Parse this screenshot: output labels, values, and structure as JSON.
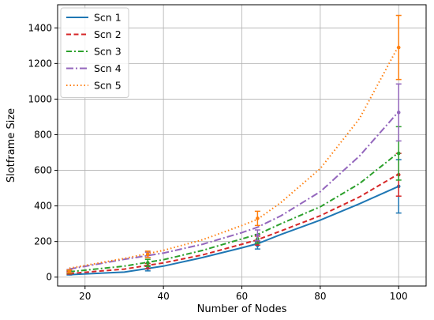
{
  "chart_data": {
    "type": "line",
    "xlabel": "Number of Nodes",
    "ylabel": "Slotframe Size",
    "xlim": [
      13,
      107
    ],
    "ylim": [
      -50,
      1530
    ],
    "xticks": [
      20,
      40,
      60,
      80,
      100
    ],
    "yticks": [
      0,
      200,
      400,
      600,
      800,
      1000,
      1200,
      1400
    ],
    "grid": true,
    "legend_position": "top-left",
    "measured_x": [
      16,
      36,
      64,
      100
    ],
    "series": [
      {
        "name": "Scn 1",
        "color": "#1f77b4",
        "dash": "solid",
        "curve": [
          [
            16,
            14
          ],
          [
            30,
            28
          ],
          [
            40,
            62
          ],
          [
            50,
            110
          ],
          [
            60,
            165
          ],
          [
            64,
            188
          ],
          [
            70,
            240
          ],
          [
            80,
            320
          ],
          [
            90,
            412
          ],
          [
            100,
            510
          ]
        ],
        "points": [
          [
            16,
            20
          ],
          [
            36,
            50
          ],
          [
            64,
            178
          ],
          [
            100,
            510
          ]
        ],
        "errors": [
          8,
          15,
          20,
          150
        ]
      },
      {
        "name": "Scn 2",
        "color": "#d62728",
        "dash": "6,3.5",
        "curve": [
          [
            16,
            20
          ],
          [
            30,
            45
          ],
          [
            40,
            80
          ],
          [
            50,
            125
          ],
          [
            60,
            185
          ],
          [
            64,
            210
          ],
          [
            70,
            260
          ],
          [
            80,
            345
          ],
          [
            90,
            450
          ],
          [
            100,
            580
          ]
        ],
        "points": [
          [
            16,
            25
          ],
          [
            36,
            62
          ],
          [
            64,
            205
          ],
          [
            100,
            575
          ]
        ],
        "errors": [
          8,
          15,
          25,
          120
        ]
      },
      {
        "name": "Scn 3",
        "color": "#2ca02c",
        "dash": "7,3,2,3",
        "curve": [
          [
            16,
            30
          ],
          [
            30,
            62
          ],
          [
            40,
            98
          ],
          [
            50,
            150
          ],
          [
            60,
            215
          ],
          [
            64,
            240
          ],
          [
            70,
            300
          ],
          [
            80,
            395
          ],
          [
            90,
            525
          ],
          [
            100,
            700
          ]
        ],
        "points": [
          [
            16,
            30
          ],
          [
            36,
            80
          ],
          [
            64,
            215
          ],
          [
            100,
            695
          ]
        ],
        "errors": [
          8,
          20,
          25,
          150
        ]
      },
      {
        "name": "Scn 4",
        "color": "#9467bd",
        "dash": "9,3,2,3",
        "curve": [
          [
            16,
            45
          ],
          [
            30,
            100
          ],
          [
            40,
            135
          ],
          [
            50,
            185
          ],
          [
            60,
            250
          ],
          [
            64,
            280
          ],
          [
            70,
            345
          ],
          [
            80,
            480
          ],
          [
            90,
            680
          ],
          [
            100,
            930
          ]
        ],
        "points": [
          [
            16,
            35
          ],
          [
            36,
            125
          ],
          [
            64,
            235
          ],
          [
            100,
            925
          ]
        ],
        "errors": [
          8,
          15,
          30,
          160
        ]
      },
      {
        "name": "Scn 5",
        "color": "#ff7f0e",
        "dash": "1.5,3",
        "curve": [
          [
            16,
            50
          ],
          [
            30,
            105
          ],
          [
            40,
            150
          ],
          [
            50,
            210
          ],
          [
            60,
            290
          ],
          [
            64,
            325
          ],
          [
            70,
            420
          ],
          [
            80,
            610
          ],
          [
            90,
            890
          ],
          [
            100,
            1300
          ]
        ],
        "points": [
          [
            16,
            32
          ],
          [
            36,
            128
          ],
          [
            64,
            330
          ],
          [
            100,
            1290
          ]
        ],
        "errors": [
          8,
          18,
          40,
          180
        ]
      }
    ]
  }
}
